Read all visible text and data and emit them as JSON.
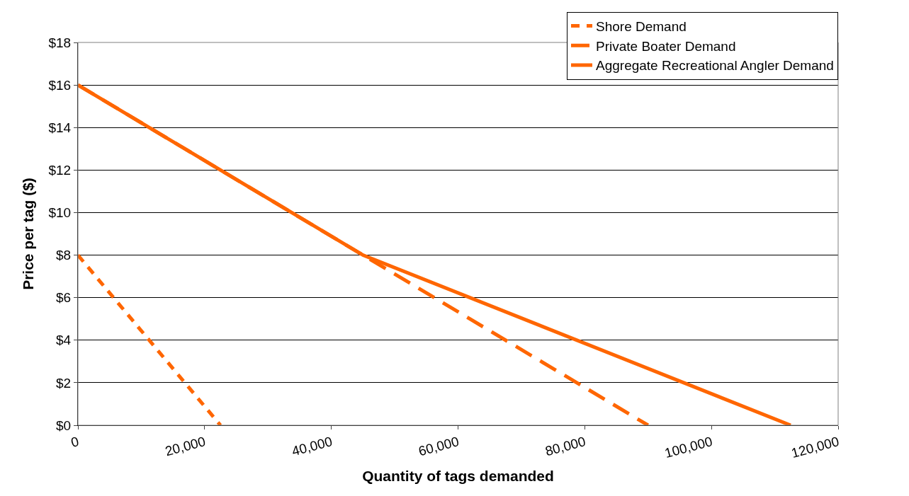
{
  "chart_data": {
    "type": "line",
    "xlabel": "Quantity of tags demanded",
    "ylabel": "Price per tag ($)",
    "series": [
      {
        "name": "Shore Demand",
        "color": "#ff6600",
        "x": [
          0,
          22500
        ],
        "values": [
          8,
          0
        ],
        "line_style": "dashed"
      },
      {
        "name": "Private Boater Demand",
        "color": "#ff6600",
        "x": [
          0,
          90000
        ],
        "values": [
          16,
          0
        ],
        "line_style": "dashed"
      },
      {
        "name": "Aggregate Recreational Angler Demand",
        "color": "#ff6600",
        "x": [
          0,
          45000,
          112500
        ],
        "values": [
          16,
          8,
          0
        ],
        "line_style": "solid"
      }
    ],
    "xlim": [
      0,
      120000
    ],
    "xticks": [
      0,
      {
        "value": 20000,
        "label": "20,000"
      },
      {
        "value": 40000,
        "label": "40,000"
      },
      {
        "value": 60000,
        "label": "60,000"
      },
      {
        "value": 80000,
        "label": "80,000"
      },
      {
        "value": 100000,
        "label": "100,000"
      },
      {
        "value": 120000,
        "label": "120,000"
      }
    ],
    "ylim": [
      0,
      18
    ],
    "yticks": [
      {
        "value": 0,
        "label": "$0"
      },
      {
        "value": 2,
        "label": "$2"
      },
      {
        "value": 4,
        "label": "$4"
      },
      {
        "value": 6,
        "label": "$6"
      },
      {
        "value": 8,
        "label": "$8"
      },
      {
        "value": 10,
        "label": "$10"
      },
      {
        "value": 12,
        "label": "$12"
      },
      {
        "value": 14,
        "label": "$14"
      },
      {
        "value": 16,
        "label": "$16"
      },
      {
        "value": 18,
        "label": "$18"
      }
    ],
    "grid": "y",
    "legend": "top right",
    "marker": "none"
  }
}
